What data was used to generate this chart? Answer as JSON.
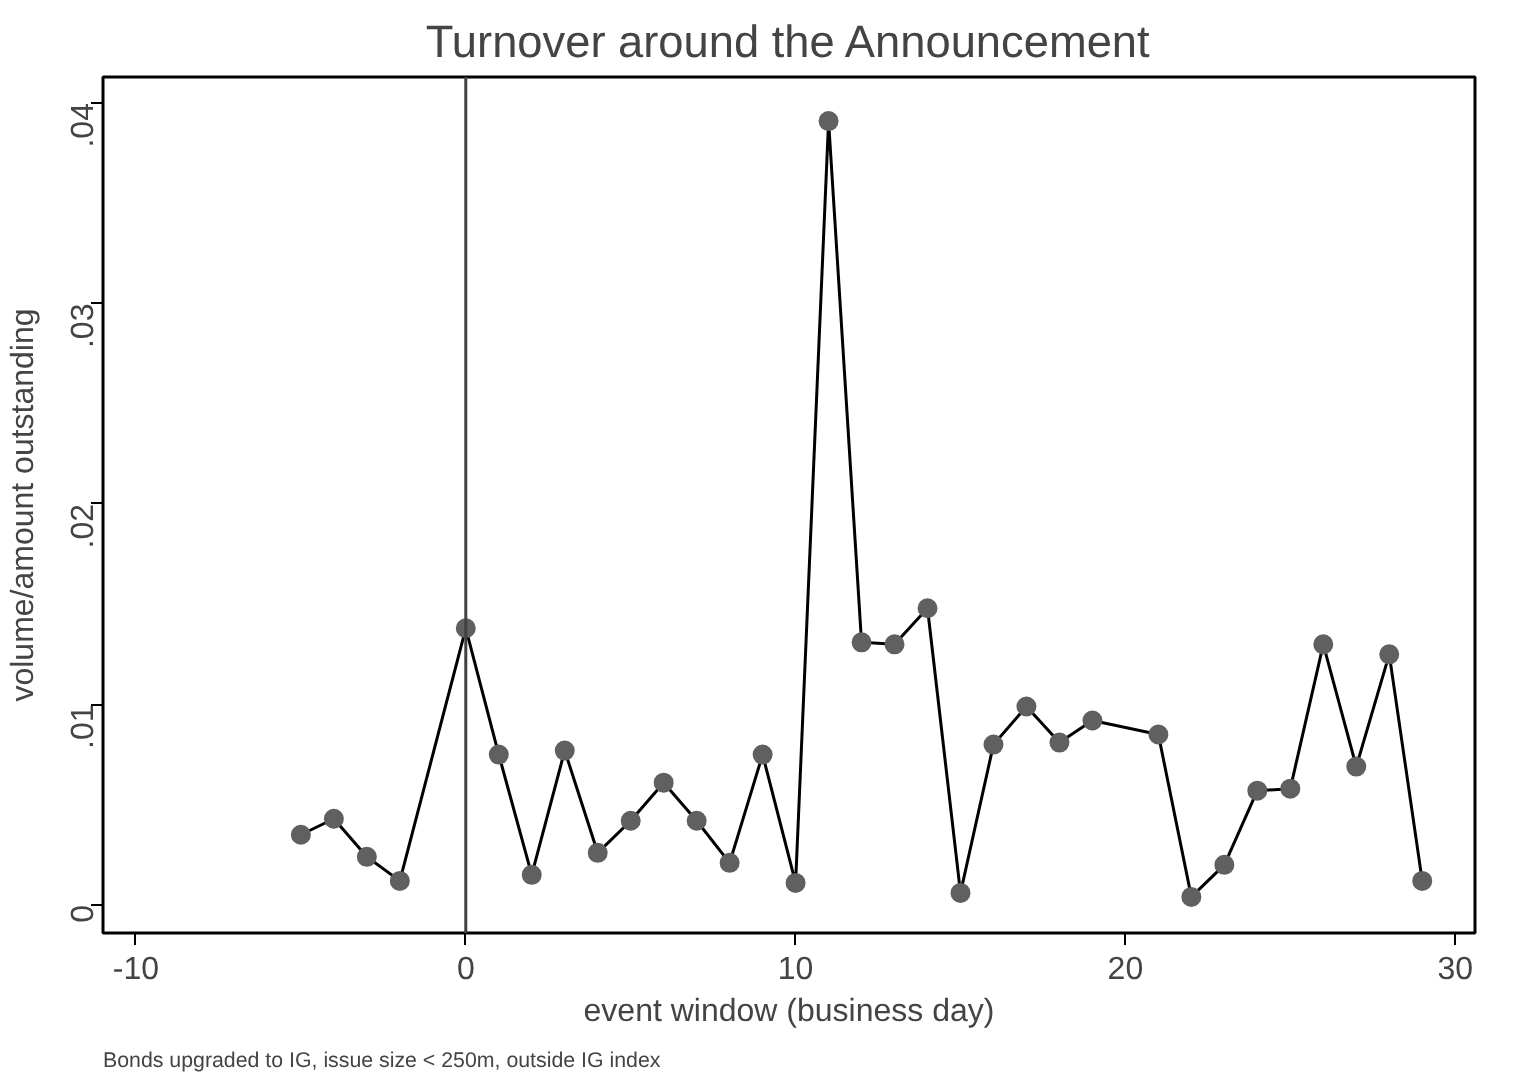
{
  "chart_data": {
    "type": "line",
    "title": "Turnover around the Announcement",
    "xlabel": "event window (business day)",
    "ylabel": "volume/amount outstanding",
    "annotations": [
      "Bonds upgraded to IG, issue size < 250m, outside IG index"
    ],
    "x": [
      -5,
      -4,
      -3,
      -2,
      0,
      1,
      2,
      3,
      4,
      5,
      6,
      7,
      8,
      9,
      10,
      11,
      12,
      13,
      14,
      15,
      16,
      17,
      18,
      19,
      21,
      22,
      23,
      24,
      25,
      26,
      27,
      28,
      29
    ],
    "series": [
      {
        "color": "#606060",
        "values": [
          0.0035,
          0.0043,
          0.0024,
          0.0012,
          0.0138,
          0.0075,
          0.0015,
          0.0077,
          0.0026,
          0.0042,
          0.0061,
          0.0042,
          0.0021,
          0.0075,
          0.0011,
          0.0391,
          0.0131,
          0.013,
          0.0148,
          0.0006,
          0.008,
          0.0099,
          0.0081,
          0.0092,
          0.0085,
          0.0004,
          0.002,
          0.0057,
          0.0058,
          0.013,
          0.0069,
          0.0125,
          0.0012
        ]
      }
    ],
    "marker": "circle",
    "line_style": "solid",
    "grid": false,
    "xlim": [
      -11,
      30.6
    ],
    "xticks": [
      -10,
      0,
      10,
      20,
      30
    ],
    "ylim": [
      -0.0014,
      0.0413
    ],
    "yticks": [
      0,
      {
        "value": 0.01,
        "label": ".01"
      },
      {
        "value": 0.02,
        "label": ".02"
      },
      {
        "value": 0.03,
        "label": ".03"
      },
      {
        "value": 0.04,
        "label": ".04"
      }
    ],
    "ref_lines": [
      {
        "axis": "x",
        "value": 0,
        "color": "#404040"
      }
    ]
  }
}
